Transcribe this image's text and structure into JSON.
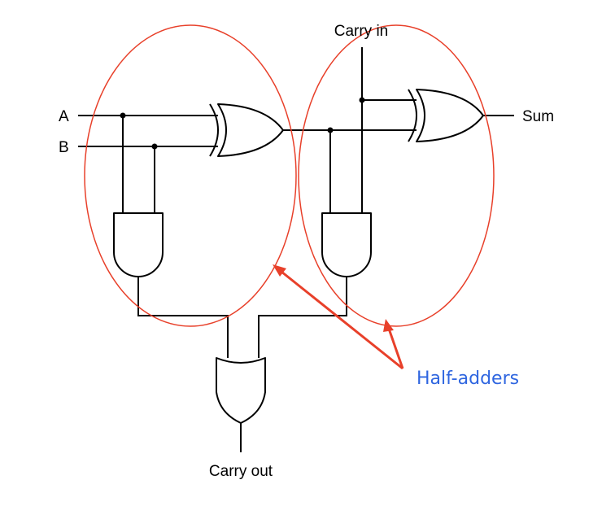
{
  "labels": {
    "input_a": "A",
    "input_b": "B",
    "carry_in": "Carry in",
    "sum": "Sum",
    "carry_out": "Carry out",
    "callout": "Half-adders"
  },
  "colors": {
    "ellipse": "#e8402a",
    "callout_text": "#2f66e0",
    "wire": "#000000"
  }
}
